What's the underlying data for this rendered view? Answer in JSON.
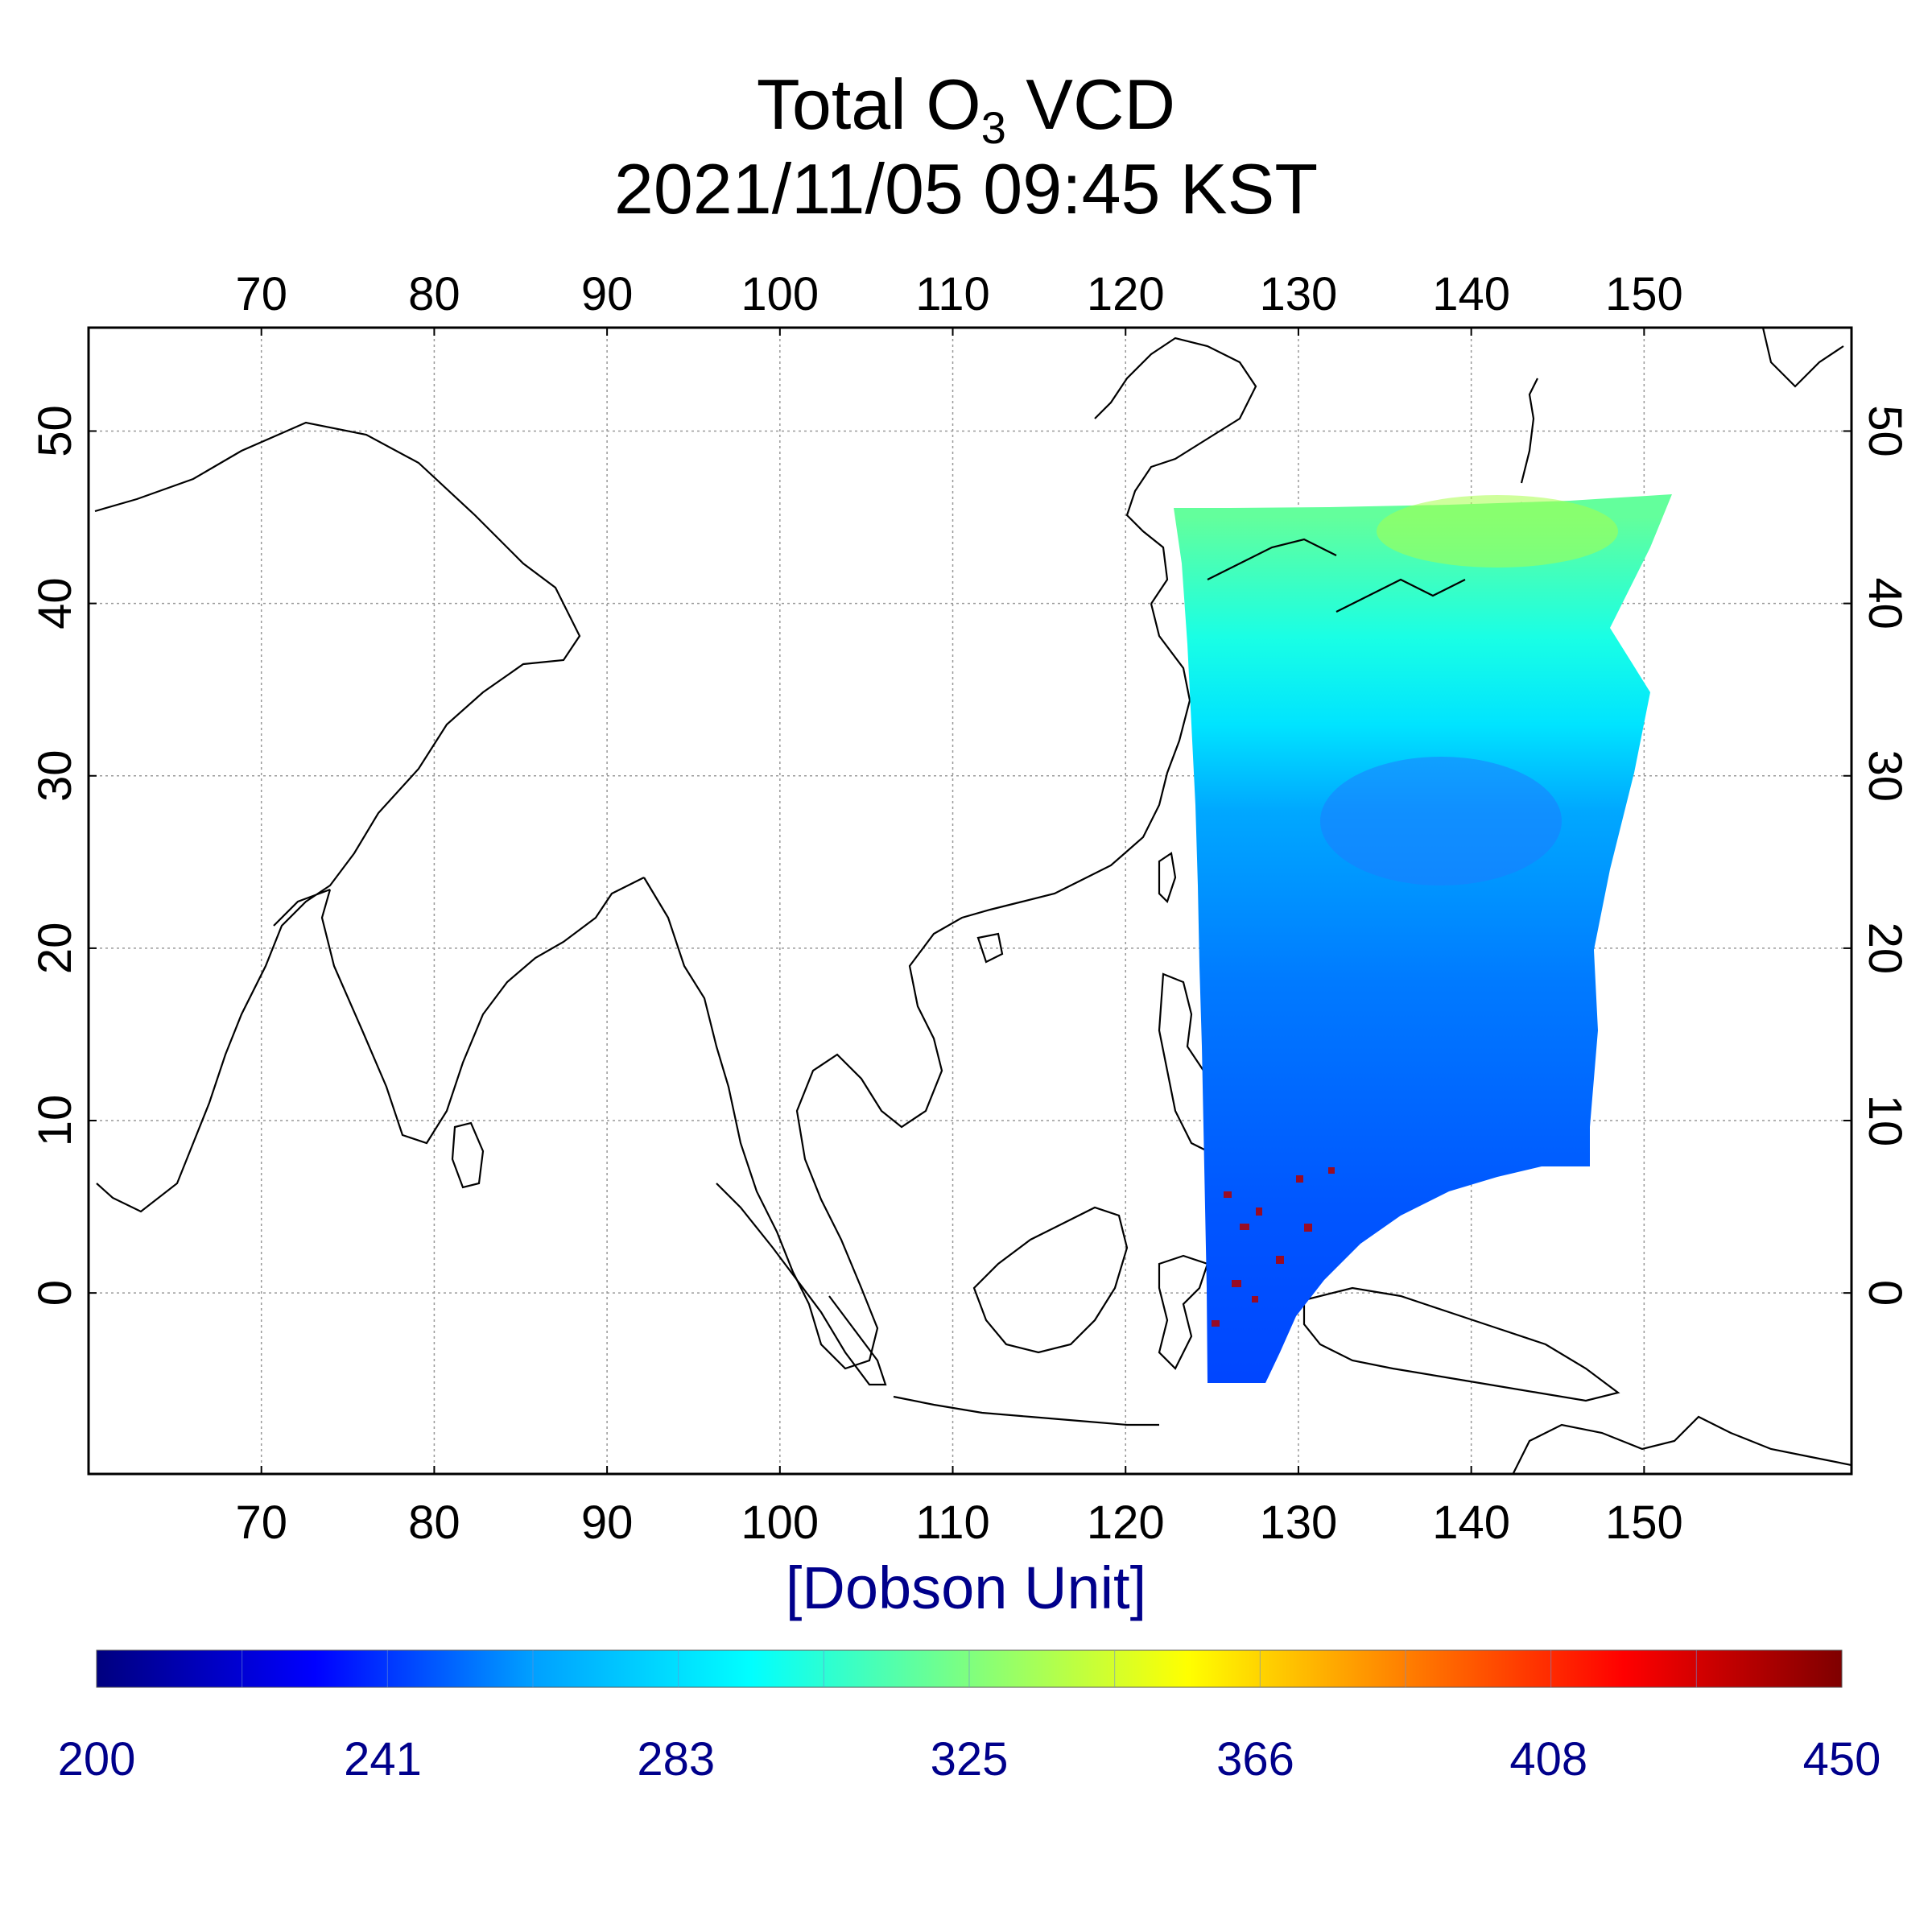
{
  "title": {
    "main": "Total O",
    "subscript": "3",
    "suffix": " VCD",
    "timestamp": "2021/11/05 09:45 KST"
  },
  "map": {
    "lon_range": [
      60,
      162
    ],
    "lat_range": [
      -10.5,
      56
    ],
    "lon_ticks": [
      "70",
      "80",
      "90",
      "100",
      "110",
      "120",
      "130",
      "140",
      "150"
    ],
    "lat_ticks": [
      "0",
      "10",
      "20",
      "30",
      "40",
      "50"
    ],
    "grid": true
  },
  "colorbar": {
    "unit": "[Dobson Unit]",
    "range": [
      200,
      450
    ],
    "ticks": [
      "200",
      "241",
      "283",
      "325",
      "366",
      "408",
      "450"
    ],
    "colors": [
      "#00007f",
      "#0000ff",
      "#00a0ff",
      "#00ffff",
      "#7fff7f",
      "#ffff00",
      "#ff7f00",
      "#ff0000",
      "#7f0000"
    ]
  },
  "swath": {
    "field_stops": [
      {
        "lat": 45,
        "value": 318
      },
      {
        "lat": 38,
        "value": 300
      },
      {
        "lat": 33,
        "value": 285
      },
      {
        "lat": 28,
        "value": 265
      },
      {
        "lat": 18,
        "value": 255
      },
      {
        "lat": 5,
        "value": 248
      },
      {
        "lat": -5,
        "value": 245
      }
    ]
  }
}
